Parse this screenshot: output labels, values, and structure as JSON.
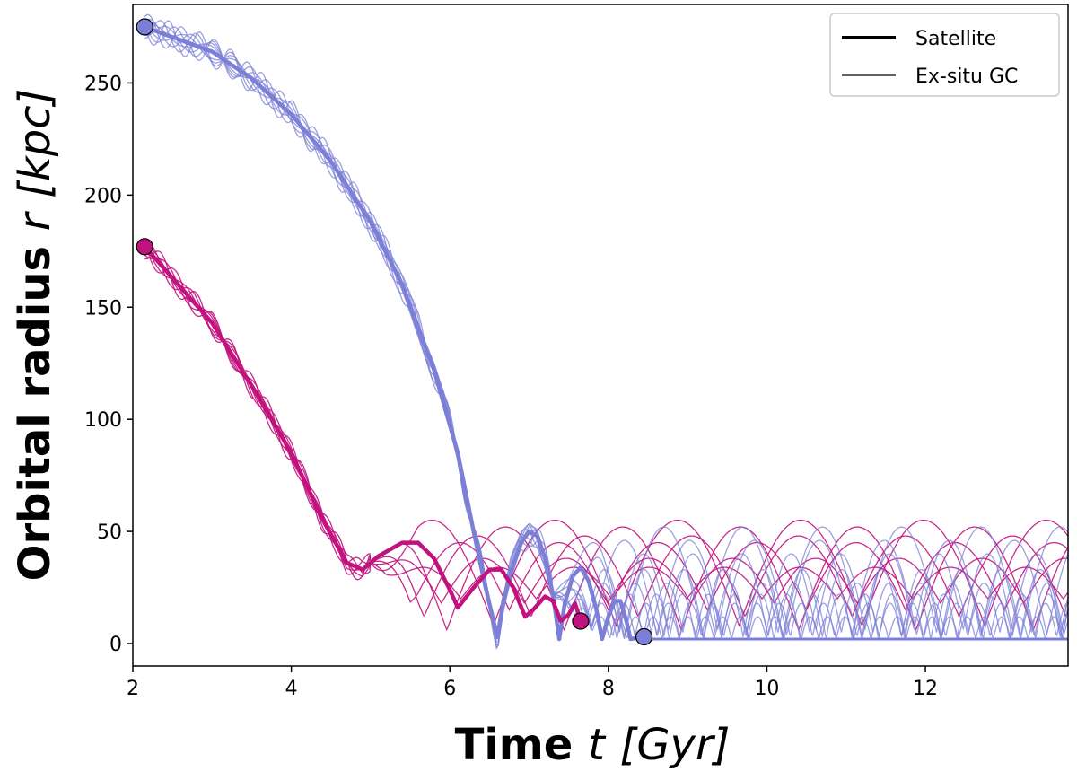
{
  "chart_data": {
    "type": "line",
    "xlabel_word": "Time",
    "xlabel_symbol": "t",
    "xlabel_unit": "[Gyr]",
    "ylabel_word": "Orbital radius",
    "ylabel_symbol": "r",
    "ylabel_unit": "[kpc]",
    "xlim": [
      2.0,
      13.8
    ],
    "ylim": [
      -10,
      285
    ],
    "xticks": [
      2,
      4,
      6,
      8,
      10,
      12
    ],
    "yticks": [
      0,
      50,
      100,
      150,
      200,
      250
    ],
    "legend": {
      "position": "top-right",
      "entries": [
        {
          "label": "Satellite",
          "style": "thick"
        },
        {
          "label": "Ex-situ GC",
          "style": "thin"
        }
      ]
    },
    "series": [
      {
        "name": "Satellite (blue)",
        "color": "#7b7fd6",
        "points": [
          [
            2.15,
            275
          ],
          [
            3.0,
            264
          ],
          [
            3.5,
            252
          ],
          [
            4.0,
            236
          ],
          [
            4.5,
            215
          ],
          [
            5.0,
            188
          ],
          [
            5.4,
            160
          ],
          [
            5.8,
            122
          ],
          [
            6.1,
            85
          ],
          [
            6.3,
            50
          ],
          [
            6.45,
            25
          ],
          [
            6.6,
            3
          ],
          [
            6.68,
            20
          ],
          [
            6.78,
            33
          ],
          [
            6.9,
            45
          ],
          [
            7.0,
            50
          ],
          [
            7.1,
            48
          ],
          [
            7.2,
            38
          ],
          [
            7.3,
            22
          ],
          [
            7.38,
            2
          ],
          [
            7.45,
            18
          ],
          [
            7.55,
            30
          ],
          [
            7.65,
            34
          ],
          [
            7.75,
            28
          ],
          [
            7.85,
            15
          ],
          [
            7.92,
            2
          ],
          [
            8.0,
            12
          ],
          [
            8.08,
            19
          ],
          [
            8.15,
            19
          ],
          [
            8.22,
            11
          ],
          [
            8.28,
            2
          ],
          [
            8.45,
            3
          ]
        ],
        "end_marker": [
          8.45,
          3
        ],
        "start_marker": [
          2.15,
          275
        ]
      },
      {
        "name": "Satellite (magenta)",
        "color": "#c2127d",
        "points": [
          [
            2.15,
            177
          ],
          [
            2.5,
            163
          ],
          [
            3.0,
            143
          ],
          [
            3.5,
            115
          ],
          [
            4.0,
            85
          ],
          [
            4.4,
            55
          ],
          [
            4.7,
            36
          ],
          [
            4.9,
            33
          ],
          [
            5.1,
            39
          ],
          [
            5.4,
            45
          ],
          [
            5.6,
            45
          ],
          [
            5.8,
            38
          ],
          [
            6.0,
            24
          ],
          [
            6.1,
            16
          ],
          [
            6.3,
            25
          ],
          [
            6.5,
            33
          ],
          [
            6.65,
            33
          ],
          [
            6.8,
            25
          ],
          [
            6.95,
            12
          ],
          [
            7.05,
            15
          ],
          [
            7.2,
            21
          ],
          [
            7.3,
            19
          ],
          [
            7.4,
            10
          ],
          [
            7.5,
            13
          ],
          [
            7.58,
            18
          ],
          [
            7.65,
            10
          ]
        ],
        "end_marker": [
          7.65,
          10
        ],
        "start_marker": [
          2.15,
          177
        ]
      }
    ],
    "gc_orbits": {
      "magenta": [
        {
          "start": 4.9,
          "tail_start": 5.0,
          "period": 1.55,
          "amp": 55,
          "peri": 8,
          "phase": 0.0
        },
        {
          "start": 4.9,
          "tail_start": 5.0,
          "period": 1.48,
          "amp": 52,
          "peri": 6,
          "phase": 0.35
        },
        {
          "start": 4.9,
          "tail_start": 5.0,
          "period": 1.25,
          "amp": 45,
          "peri": 15,
          "phase": 0.6
        },
        {
          "start": 4.9,
          "tail_start": 5.0,
          "period": 1.05,
          "amp": 38,
          "peri": 18,
          "phase": 0.15
        },
        {
          "start": 4.9,
          "tail_start": 5.0,
          "period": 0.95,
          "amp": 34,
          "peri": 20,
          "phase": 0.8
        },
        {
          "start": 4.9,
          "tail_start": 5.0,
          "period": 1.35,
          "amp": 48,
          "peri": 12,
          "phase": 0.5
        }
      ],
      "blue": [
        {
          "start": 7.0,
          "tail_start": 7.3,
          "period": 1.0,
          "amp": 52,
          "peri": 2,
          "phase": 0.1
        },
        {
          "start": 7.0,
          "tail_start": 7.3,
          "period": 0.82,
          "amp": 46,
          "peri": 4,
          "phase": 0.4
        },
        {
          "start": 7.0,
          "tail_start": 7.3,
          "period": 0.62,
          "amp": 40,
          "peri": 6,
          "phase": 0.65
        },
        {
          "start": 7.0,
          "tail_start": 7.3,
          "period": 0.5,
          "amp": 33,
          "peri": 3,
          "phase": 0.2
        },
        {
          "start": 7.0,
          "tail_start": 7.3,
          "period": 0.4,
          "amp": 27,
          "peri": 5,
          "phase": 0.9
        },
        {
          "start": 7.0,
          "tail_start": 7.3,
          "period": 0.33,
          "amp": 22,
          "peri": 2,
          "phase": 0.55
        },
        {
          "start": 7.0,
          "tail_start": 7.3,
          "period": 0.28,
          "amp": 18,
          "peri": 3,
          "phase": 0.3
        },
        {
          "start": 7.0,
          "tail_start": 7.3,
          "period": 0.22,
          "amp": 12,
          "peri": 2,
          "phase": 0.75
        }
      ]
    }
  }
}
